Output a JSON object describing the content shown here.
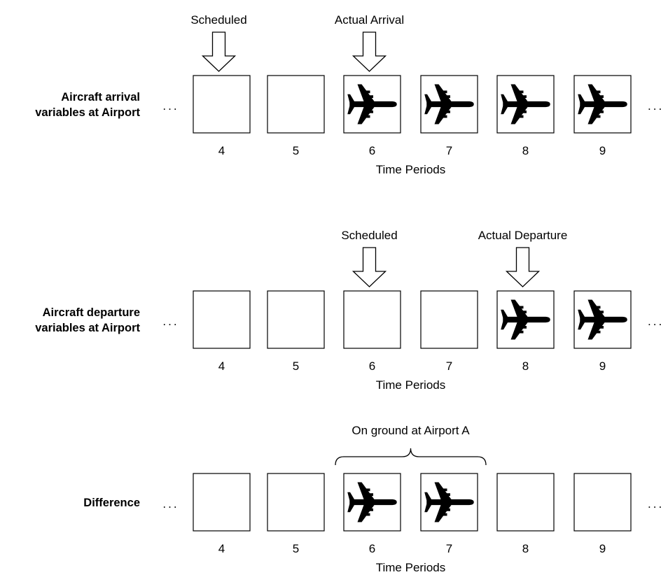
{
  "panels": [
    {
      "row_label": [
        "Aircraft arrival",
        "variables at Airport"
      ],
      "leading_dots": "...",
      "trailing_dots": "...",
      "periods": [
        "4",
        "5",
        "6",
        "7",
        "8",
        "9"
      ],
      "occupied": [
        false,
        false,
        true,
        true,
        true,
        true
      ],
      "axis_label": "Time Periods",
      "markers": [
        {
          "label": "Scheduled",
          "period": "4"
        },
        {
          "label": "Actual Arrival",
          "period": "6"
        }
      ]
    },
    {
      "row_label": [
        "Aircraft departure",
        "variables at Airport"
      ],
      "leading_dots": "...",
      "trailing_dots": "...",
      "periods": [
        "4",
        "5",
        "6",
        "7",
        "8",
        "9"
      ],
      "occupied": [
        false,
        false,
        false,
        false,
        true,
        true
      ],
      "axis_label": "Time Periods",
      "markers": [
        {
          "label": "Scheduled",
          "period": "6"
        },
        {
          "label": "Actual Departure",
          "period": "8"
        }
      ]
    },
    {
      "row_label": [
        "Difference"
      ],
      "leading_dots": "...",
      "trailing_dots": "...",
      "periods": [
        "4",
        "5",
        "6",
        "7",
        "8",
        "9"
      ],
      "occupied": [
        false,
        false,
        true,
        true,
        false,
        false
      ],
      "axis_label": "Time Periods",
      "brace_label": "On ground at Airport A",
      "brace_periods": [
        "6",
        "7"
      ]
    }
  ],
  "icons": {
    "occupied_cell": "airplane-icon",
    "marker": "down-arrow-icon"
  }
}
